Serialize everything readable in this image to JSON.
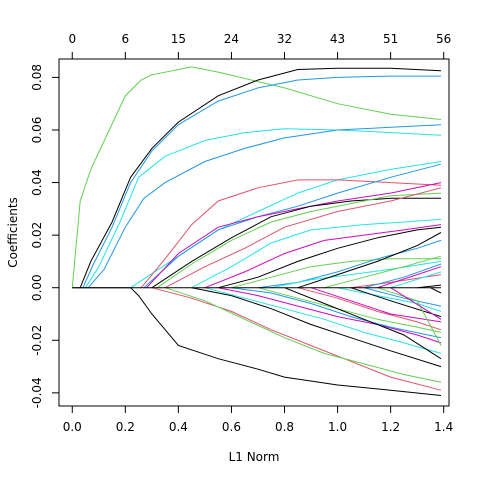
{
  "chart_data": {
    "type": "line",
    "title": "",
    "xlabel": "L1 Norm",
    "ylabel": "Coefficients",
    "xlim": [
      -0.05,
      1.42
    ],
    "ylim": [
      -0.045,
      0.087
    ],
    "x_ticks": [
      0.0,
      0.2,
      0.4,
      0.6,
      0.8,
      1.0,
      1.2,
      1.4
    ],
    "x_tick_labels": [
      "0.0",
      "0.2",
      "0.4",
      "0.6",
      "0.8",
      "1.0",
      "1.2",
      "1.4"
    ],
    "y_ticks": [
      -0.04,
      -0.02,
      0.0,
      0.02,
      0.04,
      0.06,
      0.08
    ],
    "y_tick_labels": [
      "-0.04",
      "-0.02",
      "0.00",
      "0.02",
      "0.04",
      "0.06",
      "0.08"
    ],
    "top_axis": {
      "ticks": [
        0.0,
        0.2,
        0.4,
        0.6,
        0.8,
        1.0,
        1.2,
        1.4
      ],
      "labels": [
        "0",
        "6",
        "15",
        "24",
        "32",
        "43",
        "51",
        "56"
      ]
    },
    "grid": false,
    "legend": "none",
    "colors": [
      "#000000",
      "#DF536B",
      "#61D04F",
      "#2297E6",
      "#28E2E5",
      "#CD0BBC",
      "#F5C710",
      "#9E9E9E"
    ],
    "series": [
      {
        "color": "#61D04F",
        "x": [
          0.0,
          0.03,
          0.07,
          0.2,
          0.26,
          0.3,
          0.45,
          0.55,
          0.8,
          1.0,
          1.2,
          1.39
        ],
        "y": [
          0.0,
          0.033,
          0.045,
          0.073,
          0.079,
          0.081,
          0.084,
          0.082,
          0.076,
          0.07,
          0.066,
          0.064
        ]
      },
      {
        "color": "#000000",
        "x": [
          0.03,
          0.07,
          0.15,
          0.22,
          0.3,
          0.4,
          0.55,
          0.7,
          0.85,
          1.0,
          1.2,
          1.39
        ],
        "y": [
          0.0,
          0.01,
          0.025,
          0.042,
          0.053,
          0.063,
          0.073,
          0.079,
          0.083,
          0.0835,
          0.0835,
          0.0825
        ]
      },
      {
        "color": "#2297E6",
        "x": [
          0.04,
          0.08,
          0.15,
          0.22,
          0.3,
          0.4,
          0.55,
          0.7,
          0.85,
          1.0,
          1.2,
          1.39
        ],
        "y": [
          0.0,
          0.009,
          0.023,
          0.04,
          0.052,
          0.062,
          0.071,
          0.076,
          0.079,
          0.08,
          0.0805,
          0.0805
        ]
      },
      {
        "color": "#28E2E5",
        "x": [
          0.05,
          0.1,
          0.18,
          0.25,
          0.35,
          0.5,
          0.65,
          0.8,
          1.0,
          1.2,
          1.39
        ],
        "y": [
          0.0,
          0.008,
          0.025,
          0.042,
          0.05,
          0.056,
          0.059,
          0.0605,
          0.06,
          0.059,
          0.058
        ]
      },
      {
        "color": "#2297E6",
        "x": [
          0.06,
          0.12,
          0.2,
          0.27,
          0.35,
          0.5,
          0.65,
          0.8,
          1.0,
          1.2,
          1.39
        ],
        "y": [
          0.0,
          0.007,
          0.023,
          0.034,
          0.04,
          0.048,
          0.053,
          0.057,
          0.06,
          0.061,
          0.062
        ]
      },
      {
        "color": "#000000",
        "x": [
          0.0,
          0.22,
          0.25,
          0.3,
          0.4,
          0.55,
          0.7,
          0.8,
          1.0,
          1.2,
          1.39
        ],
        "y": [
          0.0,
          0.0,
          -0.003,
          -0.01,
          -0.022,
          -0.027,
          -0.031,
          -0.034,
          -0.037,
          -0.039,
          -0.041
        ]
      },
      {
        "color": "#28E2E5",
        "x": [
          0.22,
          0.4,
          0.55,
          0.7,
          0.85,
          1.0,
          1.2,
          1.39
        ],
        "y": [
          0.0,
          0.012,
          0.022,
          0.029,
          0.036,
          0.041,
          0.045,
          0.048
        ]
      },
      {
        "color": "#DF536B",
        "x": [
          0.26,
          0.35,
          0.45,
          0.55,
          0.7,
          0.85,
          1.0,
          1.2,
          1.39
        ],
        "y": [
          0.0,
          0.011,
          0.024,
          0.033,
          0.038,
          0.041,
          0.041,
          0.04,
          0.039
        ]
      },
      {
        "color": "#2297E6",
        "x": [
          0.27,
          0.4,
          0.55,
          0.7,
          0.85,
          1.0,
          1.2,
          1.39
        ],
        "y": [
          0.0,
          0.012,
          0.022,
          0.027,
          0.031,
          0.036,
          0.042,
          0.047
        ]
      },
      {
        "color": "#CD0BBC",
        "x": [
          0.28,
          0.4,
          0.55,
          0.7,
          0.85,
          1.0,
          1.2,
          1.39
        ],
        "y": [
          0.0,
          0.013,
          0.023,
          0.027,
          0.03,
          0.033,
          0.036,
          0.04
        ]
      },
      {
        "color": "#000000",
        "x": [
          0.3,
          0.45,
          0.6,
          0.75,
          0.9,
          1.05,
          1.2,
          1.39
        ],
        "y": [
          0.0,
          0.01,
          0.019,
          0.027,
          0.031,
          0.033,
          0.034,
          0.034
        ]
      },
      {
        "color": "#61D04F",
        "x": [
          0.32,
          0.45,
          0.6,
          0.75,
          0.9,
          1.05,
          1.2,
          1.39
        ],
        "y": [
          0.0,
          0.009,
          0.018,
          0.025,
          0.029,
          0.032,
          0.035,
          0.036
        ]
      },
      {
        "color": "#DF536B",
        "x": [
          0.35,
          0.5,
          0.65,
          0.8,
          1.0,
          1.2,
          1.39
        ],
        "y": [
          0.0,
          0.008,
          0.015,
          0.023,
          0.029,
          0.033,
          0.038
        ]
      },
      {
        "color": "#28E2E5",
        "x": [
          0.45,
          0.6,
          0.75,
          0.9,
          1.1,
          1.25,
          1.39
        ],
        "y": [
          0.0,
          0.008,
          0.017,
          0.022,
          0.024,
          0.025,
          0.026
        ]
      },
      {
        "color": "#CD0BBC",
        "x": [
          0.5,
          0.65,
          0.8,
          0.95,
          1.1,
          1.25,
          1.39
        ],
        "y": [
          0.0,
          0.006,
          0.013,
          0.018,
          0.02,
          0.022,
          0.024
        ]
      },
      {
        "color": "#000000",
        "x": [
          0.55,
          0.7,
          0.85,
          1.0,
          1.15,
          1.3,
          1.39
        ],
        "y": [
          0.0,
          0.004,
          0.01,
          0.015,
          0.019,
          0.022,
          0.023
        ]
      },
      {
        "color": "#61D04F",
        "x": [
          0.6,
          0.75,
          0.9,
          1.05,
          1.2,
          1.39
        ],
        "y": [
          0.0,
          0.004,
          0.008,
          0.01,
          0.011,
          0.011
        ]
      },
      {
        "color": "#2297E6",
        "x": [
          0.7,
          0.85,
          1.0,
          1.15,
          1.3,
          1.39
        ],
        "y": [
          0.0,
          0.002,
          0.006,
          0.011,
          0.015,
          0.018
        ]
      },
      {
        "color": "#28E2E5",
        "x": [
          0.75,
          0.9,
          1.05,
          1.2,
          1.39
        ],
        "y": [
          0.0,
          0.003,
          0.005,
          0.007,
          0.01
        ]
      },
      {
        "color": "#000000",
        "x": [
          0.85,
          1.0,
          1.15,
          1.3,
          1.39
        ],
        "y": [
          0.0,
          0.005,
          0.01,
          0.016,
          0.021
        ]
      },
      {
        "color": "#61D04F",
        "x": [
          0.95,
          1.1,
          1.25,
          1.39
        ],
        "y": [
          0.0,
          0.004,
          0.008,
          0.012
        ]
      },
      {
        "color": "#DF536B",
        "x": [
          1.05,
          1.2,
          1.39
        ],
        "y": [
          0.0,
          0.002,
          0.005
        ]
      },
      {
        "color": "#2297E6",
        "x": [
          1.1,
          1.25,
          1.39
        ],
        "y": [
          0.0,
          0.004,
          0.009
        ]
      },
      {
        "color": "#CD0BBC",
        "x": [
          1.15,
          1.3,
          1.39
        ],
        "y": [
          0.0,
          0.005,
          0.008
        ]
      },
      {
        "color": "#28E2E5",
        "x": [
          1.2,
          1.39
        ],
        "y": [
          0.0,
          0.006
        ]
      },
      {
        "color": "#000000",
        "x": [
          1.3,
          1.39
        ],
        "y": [
          0.0,
          0.001
        ]
      },
      {
        "color": "#DF536B",
        "x": [
          0.3,
          0.45,
          0.6,
          0.75,
          0.9,
          1.05,
          1.2,
          1.39
        ],
        "y": [
          0.0,
          -0.004,
          -0.009,
          -0.016,
          -0.022,
          -0.028,
          -0.034,
          -0.039
        ]
      },
      {
        "color": "#61D04F",
        "x": [
          0.35,
          0.5,
          0.65,
          0.8,
          0.95,
          1.1,
          1.25,
          1.39
        ],
        "y": [
          0.0,
          -0.005,
          -0.012,
          -0.019,
          -0.025,
          -0.029,
          -0.033,
          -0.036
        ]
      },
      {
        "color": "#000000",
        "x": [
          0.45,
          0.6,
          0.75,
          0.9,
          1.05,
          1.2,
          1.39
        ],
        "y": [
          0.0,
          -0.003,
          -0.008,
          -0.014,
          -0.019,
          -0.024,
          -0.03
        ]
      },
      {
        "color": "#28E2E5",
        "x": [
          0.5,
          0.65,
          0.8,
          0.95,
          1.1,
          1.25,
          1.39
        ],
        "y": [
          0.0,
          -0.004,
          -0.008,
          -0.012,
          -0.017,
          -0.021,
          -0.025
        ]
      },
      {
        "color": "#CD0BBC",
        "x": [
          0.55,
          0.7,
          0.85,
          1.0,
          1.15,
          1.3,
          1.39
        ],
        "y": [
          0.0,
          -0.003,
          -0.007,
          -0.011,
          -0.014,
          -0.018,
          -0.021
        ]
      },
      {
        "color": "#2297E6",
        "x": [
          0.6,
          0.75,
          0.9,
          1.05,
          1.2,
          1.39
        ],
        "y": [
          0.0,
          -0.002,
          -0.006,
          -0.011,
          -0.015,
          -0.019
        ]
      },
      {
        "color": "#61D04F",
        "x": [
          0.7,
          0.85,
          1.0,
          1.15,
          1.3,
          1.39
        ],
        "y": [
          0.0,
          -0.004,
          -0.008,
          -0.012,
          -0.015,
          -0.017
        ]
      },
      {
        "color": "#000000",
        "x": [
          0.8,
          0.95,
          1.1,
          1.25,
          1.39
        ],
        "y": [
          0.0,
          -0.006,
          -0.012,
          -0.018,
          -0.027
        ]
      },
      {
        "color": "#DF536B",
        "x": [
          0.85,
          1.0,
          1.15,
          1.3,
          1.39
        ],
        "y": [
          0.0,
          -0.004,
          -0.009,
          -0.013,
          -0.016
        ]
      },
      {
        "color": "#CD0BBC",
        "x": [
          0.9,
          1.05,
          1.2,
          1.39
        ],
        "y": [
          0.0,
          -0.005,
          -0.01,
          -0.013
        ]
      },
      {
        "color": "#28E2E5",
        "x": [
          1.0,
          1.15,
          1.3,
          1.39
        ],
        "y": [
          0.0,
          -0.003,
          -0.006,
          -0.009
        ]
      },
      {
        "color": "#000000",
        "x": [
          1.05,
          1.2,
          1.39
        ],
        "y": [
          0.0,
          -0.005,
          -0.011
        ]
      },
      {
        "color": "#2297E6",
        "x": [
          1.1,
          1.25,
          1.39
        ],
        "y": [
          0.0,
          -0.004,
          -0.007
        ]
      },
      {
        "color": "#61D04F",
        "x": [
          1.15,
          1.3,
          1.39
        ],
        "y": [
          0.0,
          -0.005,
          -0.022
        ]
      },
      {
        "color": "#CD0BBC",
        "x": [
          1.2,
          1.39
        ],
        "y": [
          0.0,
          -0.012
        ]
      },
      {
        "color": "#000000",
        "x": [
          1.35,
          1.39
        ],
        "y": [
          0.0,
          -0.002
        ]
      }
    ]
  }
}
